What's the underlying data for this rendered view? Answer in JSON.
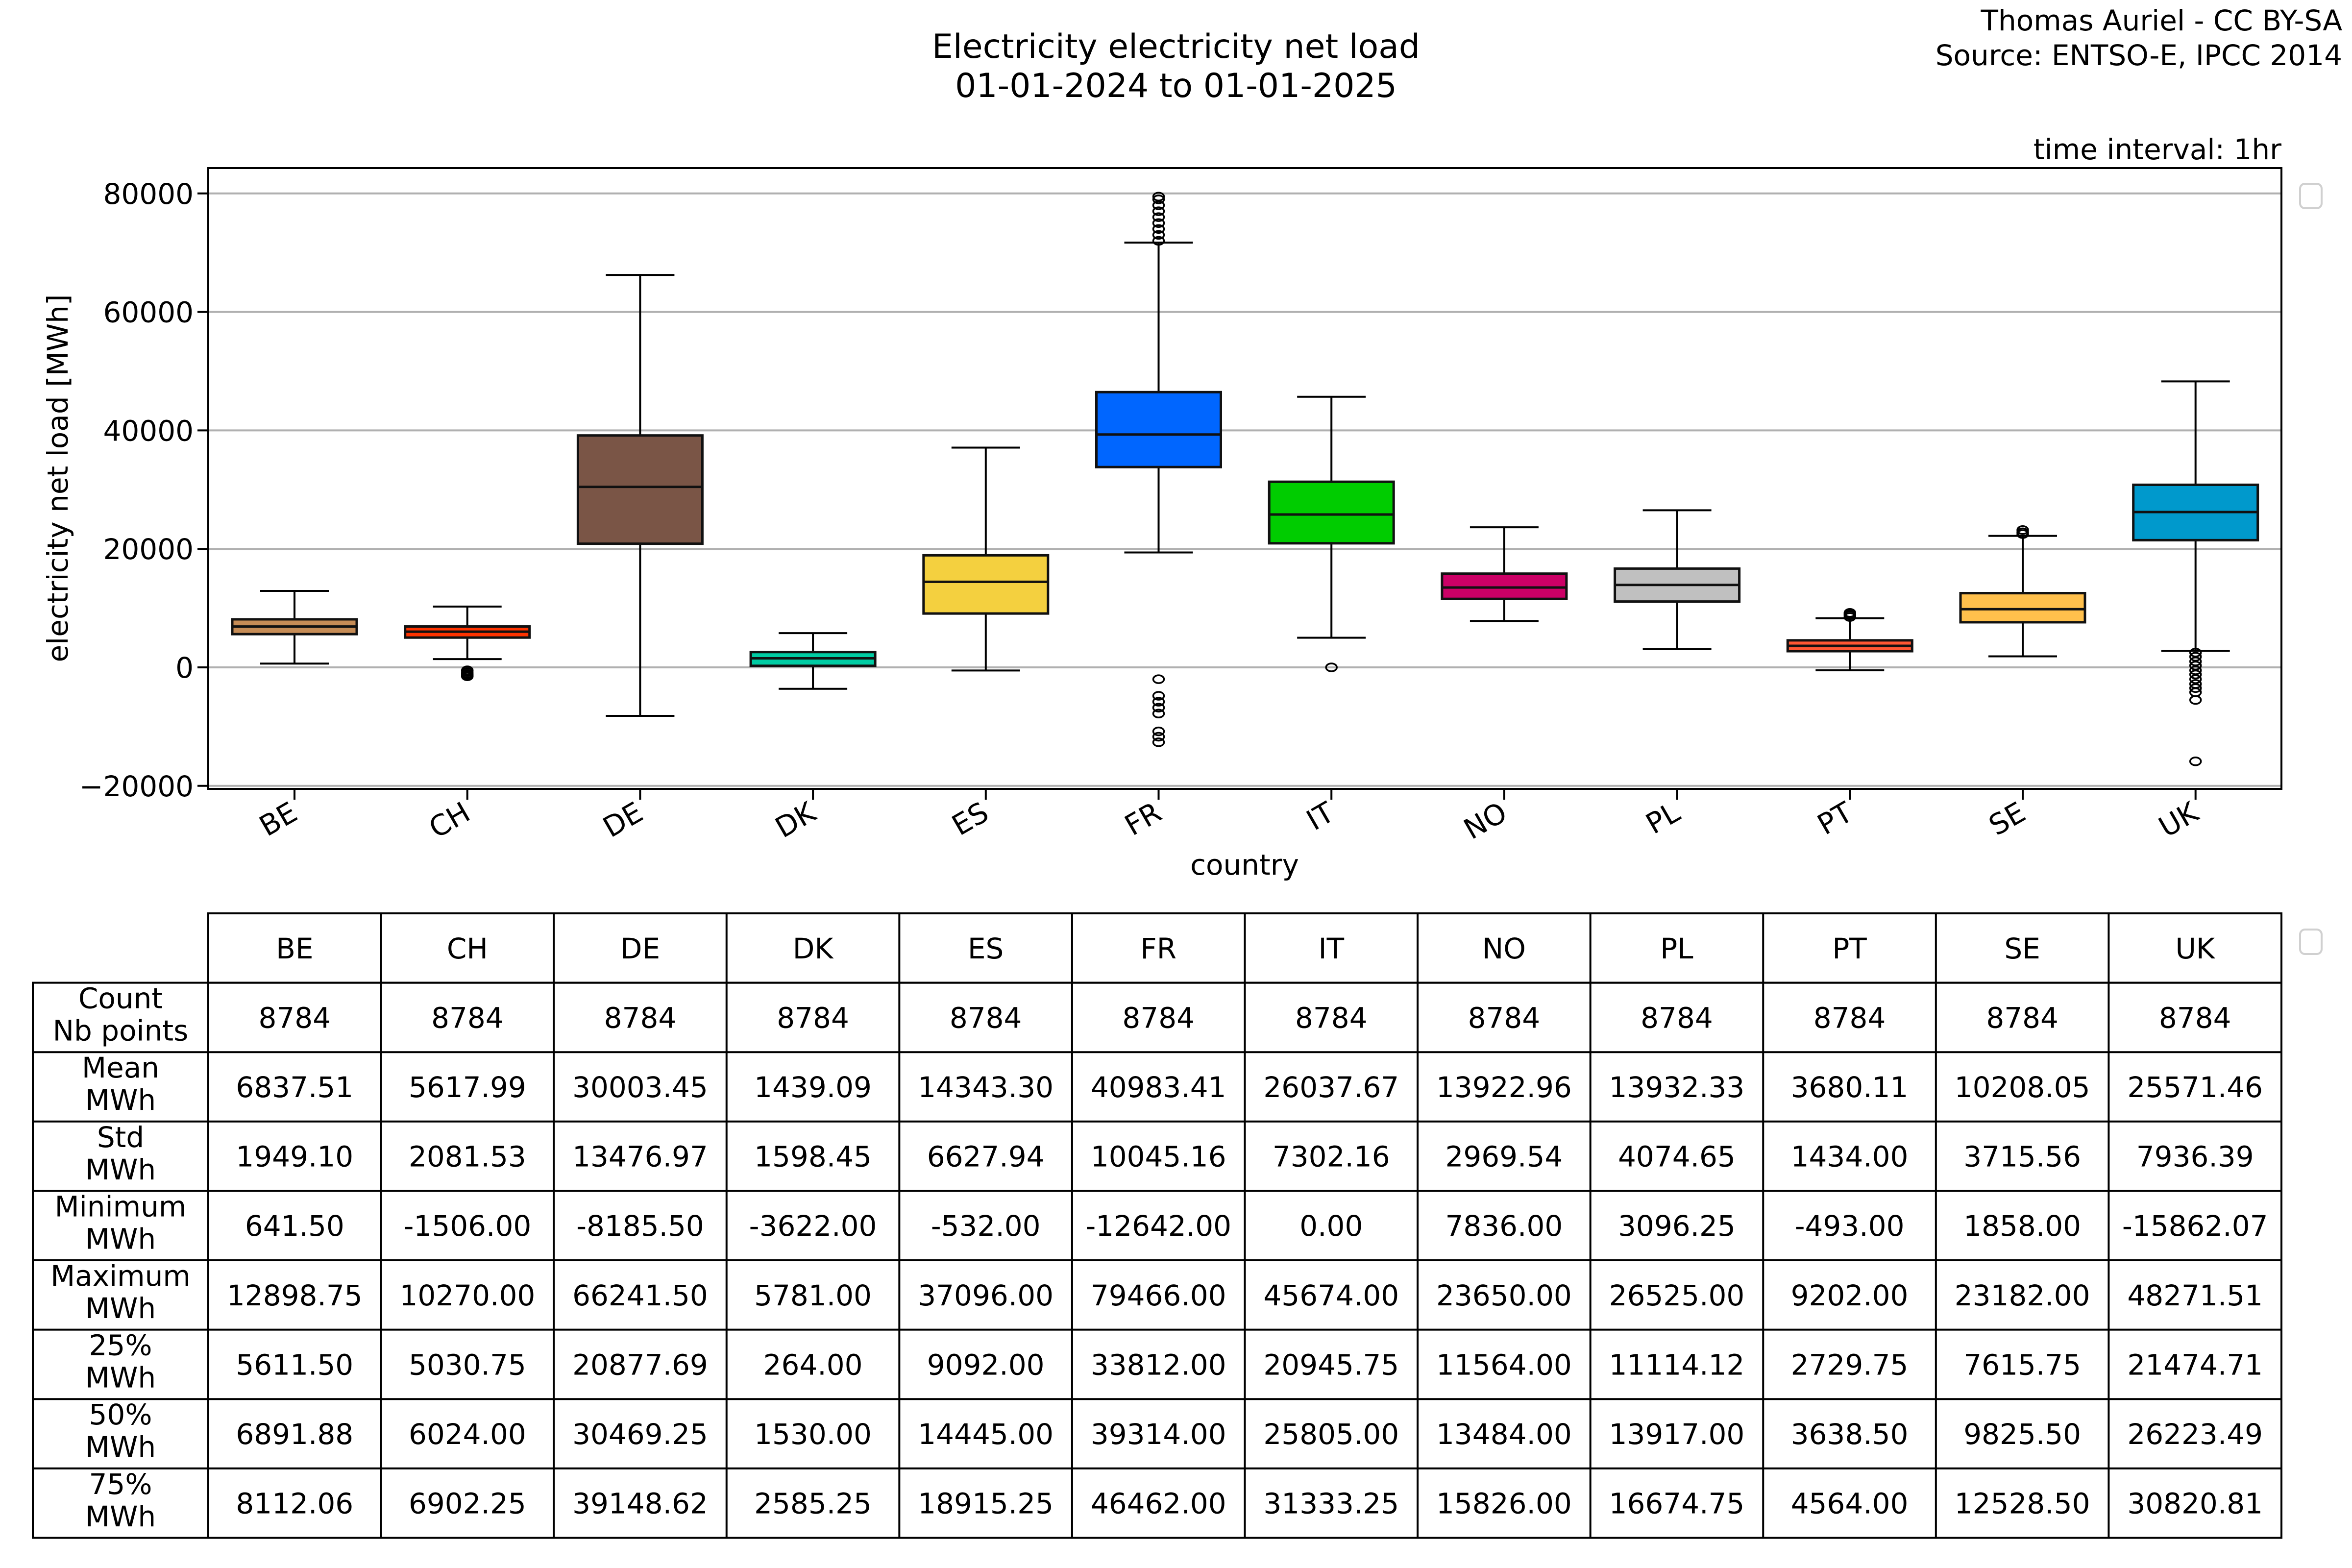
{
  "figure": {
    "title_line1": "Electricity electricity net load",
    "title_line2": "01-01-2024 to 01-01-2025",
    "credit_line1": "Thomas Auriel - CC BY-SA",
    "credit_line2": "Source: ENTSO-E, IPCC 2014",
    "time_interval": "time interval: 1hr"
  },
  "chart_data": {
    "type": "box",
    "title": "Electricity electricity net load 01-01-2024 to 01-01-2025",
    "xlabel": "country",
    "ylabel": "electricity net load [MWh]",
    "ylim": [
      -20500,
      84000
    ],
    "yticks": [
      -20000,
      0,
      20000,
      40000,
      60000,
      80000
    ],
    "ytick_labels": [
      "−20000",
      "0",
      "20000",
      "40000",
      "60000",
      "80000"
    ],
    "grid": "horizontal",
    "legend": "none (empty legend box at right)",
    "categories": [
      "BE",
      "CH",
      "DE",
      "DK",
      "ES",
      "FR",
      "IT",
      "NO",
      "PL",
      "PT",
      "SE",
      "UK"
    ],
    "series": [
      {
        "name": "BE",
        "color": "#c68c56",
        "whislo": 641.5,
        "q1": 5611.5,
        "med": 6891.88,
        "q3": 8112.06,
        "whishi": 12898.75,
        "fliers": []
      },
      {
        "name": "CH",
        "color": "#ff3300",
        "whislo": 1400,
        "q1": 5030.75,
        "med": 6024.0,
        "q3": 6902.25,
        "whishi": 10270.0,
        "fliers": [
          -500,
          -800,
          -1100,
          -1300,
          -1506
        ]
      },
      {
        "name": "DE",
        "color": "#7a5546",
        "whislo": -8185.5,
        "q1": 20877.69,
        "med": 30469.25,
        "q3": 39148.62,
        "whishi": 66241.5,
        "fliers": []
      },
      {
        "name": "DK",
        "color": "#00cca3",
        "whislo": -3622.0,
        "q1": 264.0,
        "med": 1530.0,
        "q3": 2585.25,
        "whishi": 5781.0,
        "fliers": []
      },
      {
        "name": "ES",
        "color": "#f4d03f",
        "whislo": -532.0,
        "q1": 9092.0,
        "med": 14445.0,
        "q3": 18915.25,
        "whishi": 37096.0,
        "fliers": []
      },
      {
        "name": "FR",
        "color": "#0066ff",
        "whislo": 19400,
        "q1": 33812.0,
        "med": 39314.0,
        "q3": 46462.0,
        "whishi": 71700,
        "fliers": [
          72000,
          73000,
          74000,
          75000,
          76000,
          77000,
          78000,
          79000,
          79466,
          -2000,
          -4800,
          -5800,
          -6800,
          -7800,
          -10800,
          -11700,
          -12642
        ]
      },
      {
        "name": "IT",
        "color": "#00cc00",
        "whislo": 5000,
        "q1": 20945.75,
        "med": 25805.0,
        "q3": 31333.25,
        "whishi": 45674.0,
        "fliers": [
          0.0
        ]
      },
      {
        "name": "NO",
        "color": "#cc0066",
        "whislo": 7836.0,
        "q1": 11564.0,
        "med": 13484.0,
        "q3": 15826.0,
        "whishi": 23650.0,
        "fliers": []
      },
      {
        "name": "PL",
        "color": "#c0c0c0",
        "whislo": 3096.25,
        "q1": 11114.12,
        "med": 13917.0,
        "q3": 16674.75,
        "whishi": 26525.0,
        "fliers": []
      },
      {
        "name": "PT",
        "color": "#ff5733",
        "whislo": -493.0,
        "q1": 2729.75,
        "med": 3638.5,
        "q3": 4564.0,
        "whishi": 8300,
        "fliers": [
          8500,
          8800,
          9000,
          9202
        ]
      },
      {
        "name": "SE",
        "color": "#ffc04c",
        "whislo": 1858.0,
        "q1": 7615.75,
        "med": 9825.5,
        "q3": 12528.5,
        "whishi": 22200,
        "fliers": [
          22500,
          22800,
          23182
        ]
      },
      {
        "name": "UK",
        "color": "#0099cc",
        "whislo": 2800,
        "q1": 21474.71,
        "med": 26223.49,
        "q3": 30820.81,
        "whishi": 48271.51,
        "fliers": [
          2500,
          1800,
          1000,
          300,
          -500,
          -1200,
          -2000,
          -2800,
          -3500,
          -4200,
          -5500,
          -15862.07
        ]
      }
    ]
  },
  "table": {
    "columns": [
      "BE",
      "CH",
      "DE",
      "DK",
      "ES",
      "FR",
      "IT",
      "NO",
      "PL",
      "PT",
      "SE",
      "UK"
    ],
    "rows": [
      {
        "label1": "Count",
        "label2": "Nb points",
        "values": [
          "8784",
          "8784",
          "8784",
          "8784",
          "8784",
          "8784",
          "8784",
          "8784",
          "8784",
          "8784",
          "8784",
          "8784"
        ]
      },
      {
        "label1": "Mean",
        "label2": "MWh",
        "values": [
          "6837.51",
          "5617.99",
          "30003.45",
          "1439.09",
          "14343.30",
          "40983.41",
          "26037.67",
          "13922.96",
          "13932.33",
          "3680.11",
          "10208.05",
          "25571.46"
        ]
      },
      {
        "label1": "Std",
        "label2": "MWh",
        "values": [
          "1949.10",
          "2081.53",
          "13476.97",
          "1598.45",
          "6627.94",
          "10045.16",
          "7302.16",
          "2969.54",
          "4074.65",
          "1434.00",
          "3715.56",
          "7936.39"
        ]
      },
      {
        "label1": "Minimum",
        "label2": "MWh",
        "values": [
          "641.50",
          "-1506.00",
          "-8185.50",
          "-3622.00",
          "-532.00",
          "-12642.00",
          "0.00",
          "7836.00",
          "3096.25",
          "-493.00",
          "1858.00",
          "-15862.07"
        ]
      },
      {
        "label1": "Maximum",
        "label2": "MWh",
        "values": [
          "12898.75",
          "10270.00",
          "66241.50",
          "5781.00",
          "37096.00",
          "79466.00",
          "45674.00",
          "23650.00",
          "26525.00",
          "9202.00",
          "23182.00",
          "48271.51"
        ]
      },
      {
        "label1": "25%",
        "label2": "MWh",
        "values": [
          "5611.50",
          "5030.75",
          "20877.69",
          "264.00",
          "9092.00",
          "33812.00",
          "20945.75",
          "11564.00",
          "11114.12",
          "2729.75",
          "7615.75",
          "21474.71"
        ]
      },
      {
        "label1": "50%",
        "label2": "MWh",
        "values": [
          "6891.88",
          "6024.00",
          "30469.25",
          "1530.00",
          "14445.00",
          "39314.00",
          "25805.00",
          "13484.00",
          "13917.00",
          "3638.50",
          "9825.50",
          "26223.49"
        ]
      },
      {
        "label1": "75%",
        "label2": "MWh",
        "values": [
          "8112.06",
          "6902.25",
          "39148.62",
          "2585.25",
          "18915.25",
          "46462.00",
          "31333.25",
          "15826.00",
          "16674.75",
          "4564.00",
          "12528.50",
          "30820.81"
        ]
      }
    ]
  }
}
